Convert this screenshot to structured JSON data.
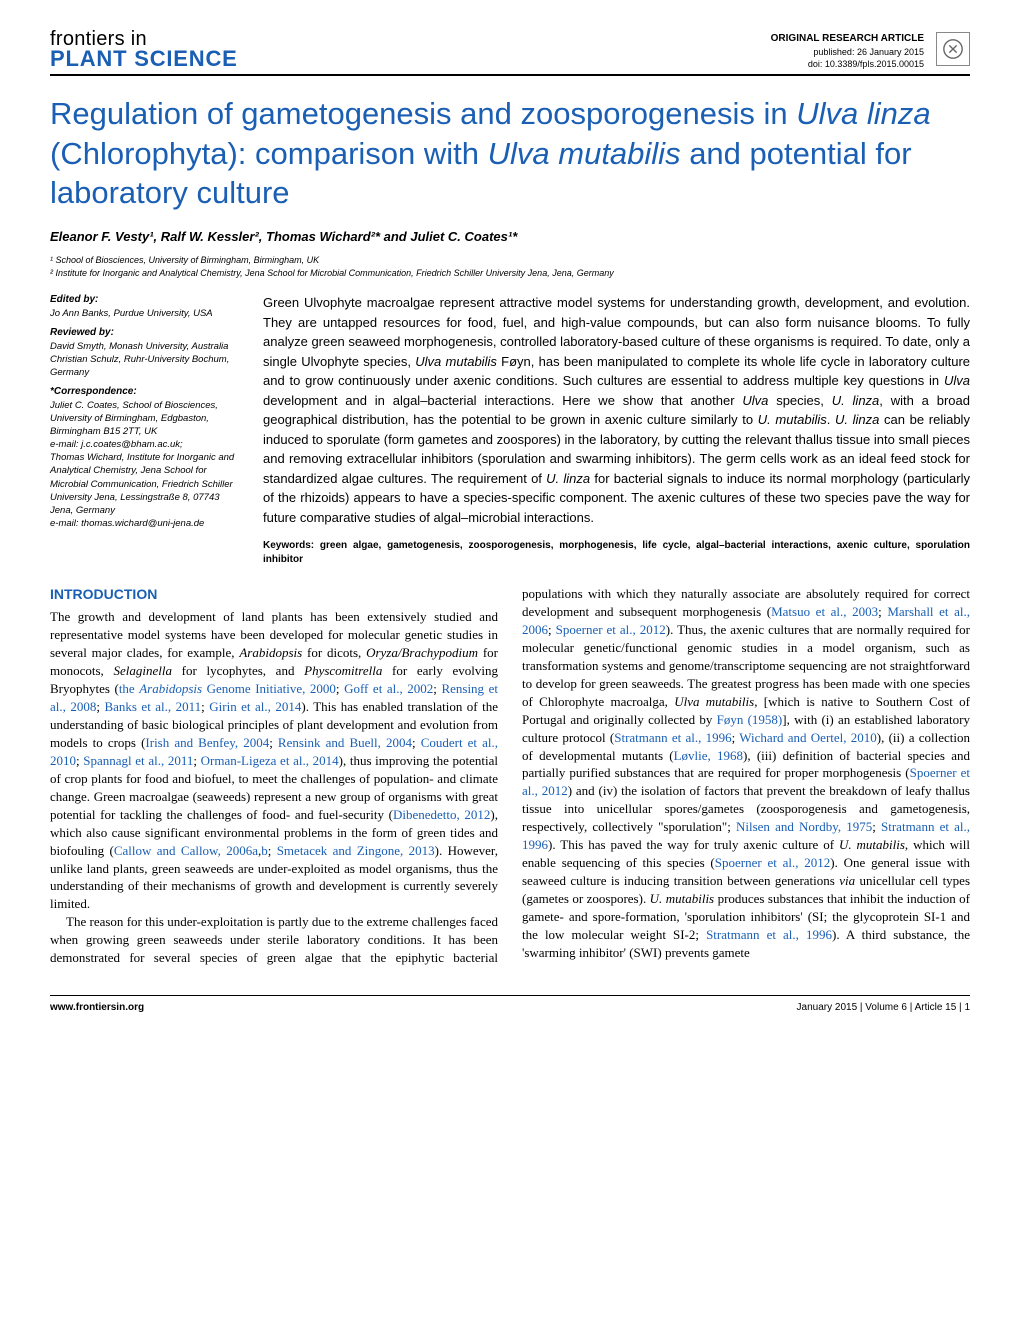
{
  "colors": {
    "brand": "#1a5fb4",
    "text": "#000000",
    "bg": "#ffffff"
  },
  "header": {
    "journal_line1": "frontiers in",
    "journal_line2": "PLANT SCIENCE",
    "article_type": "ORIGINAL RESEARCH ARTICLE",
    "published": "published: 26 January 2015",
    "doi": "doi: 10.3389/fpls.2015.00015"
  },
  "title_parts": {
    "p1": "Regulation of gametogenesis and zoosporogenesis in ",
    "sp1": "Ulva linza",
    "p2": " (Chlorophyta): comparison with ",
    "sp2": "Ulva mutabilis",
    "p3": " and potential for laboratory culture"
  },
  "authors_line": "Eleanor F. Vesty¹, Ralf W. Kessler², Thomas Wichard²* and Juliet C. Coates¹*",
  "affiliations": {
    "a1": "¹ School of Biosciences, University of Birmingham, Birmingham, UK",
    "a2": "² Institute for Inorganic and Analytical Chemistry, Jena School for Microbial Communication, Friedrich Schiller University Jena, Jena, Germany"
  },
  "sidebar": {
    "edited_h": "Edited by:",
    "edited": "Jo Ann Banks, Purdue University, USA",
    "reviewed_h": "Reviewed by:",
    "reviewed1": "David Smyth, Monash University, Australia",
    "reviewed2": "Christian Schulz, Ruhr-University Bochum, Germany",
    "corr_h": "*Correspondence:",
    "corr1": "Juliet C. Coates, School of Biosciences, University of Birmingham, Edgbaston, Birmingham B15 2TT, UK",
    "corr1_email": "e-mail: j.c.coates@bham.ac.uk;",
    "corr2": "Thomas Wichard, Institute for Inorganic and Analytical Chemistry, Jena School for Microbial Communication, Friedrich Schiller University Jena, Lessingstraße 8, 07743 Jena, Germany",
    "corr2_email": "e-mail: thomas.wichard@uni-jena.de"
  },
  "abstract_html": "Green Ulvophyte macroalgae represent attractive model systems for understanding growth, development, and evolution. They are untapped resources for food, fuel, and high-value compounds, but can also form nuisance blooms. To fully analyze green seaweed morphogenesis, controlled laboratory-based culture of these organisms is required. To date, only a single Ulvophyte species, <span class=\"ital\">Ulva mutabilis</span> Føyn, has been manipulated to complete its whole life cycle in laboratory culture and to grow continuously under axenic conditions. Such cultures are essential to address multiple key questions in <span class=\"ital\">Ulva</span> development and in algal–bacterial interactions. Here we show that another <span class=\"ital\">Ulva</span> species, <span class=\"ital\">U. linza</span>, with a broad geographical distribution, has the potential to be grown in axenic culture similarly to <span class=\"ital\">U. mutabilis</span>. <span class=\"ital\">U. linza</span> can be reliably induced to sporulate (form gametes and zoospores) in the laboratory, by cutting the relevant thallus tissue into small pieces and removing extracellular inhibitors (sporulation and swarming inhibitors). The germ cells work as an ideal feed stock for standardized algae cultures. The requirement of <span class=\"ital\">U. linza</span> for bacterial signals to induce its normal morphology (particularly of the rhizoids) appears to have a species-specific component. The axenic cultures of these two species pave the way for future comparative studies of algal–microbial interactions.",
  "keywords": "Keywords: green algae, gametogenesis, zoosporogenesis, morphogenesis, life cycle, algal–bacterial interactions, axenic culture, sporulation inhibitor",
  "intro_heading": "INTRODUCTION",
  "intro_p1_html": "The growth and development of land plants has been extensively studied and representative model systems have been developed for molecular genetic studies in several major clades, for example, <span class=\"ital\">Arabidopsis</span> for dicots, <span class=\"ital\">Oryza/Brachypodium</span> for monocots, <span class=\"ital\">Selaginella</span> for lycophytes, and <span class=\"ital\">Physcomitrella</span> for early evolving Bryophytes (<span class=\"ref\">the <span class=\"ital\">Arabidopsis</span> Genome Initiative, 2000</span>; <span class=\"ref\">Goff et al., 2002</span>; <span class=\"ref\">Rensing et al., 2008</span>; <span class=\"ref\">Banks et al., 2011</span>; <span class=\"ref\">Girin et al., 2014</span>). This has enabled translation of the understanding of basic biological principles of plant development and evolution from models to crops (<span class=\"ref\">Irish and Benfey, 2004</span>; <span class=\"ref\">Rensink and Buell, 2004</span>; <span class=\"ref\">Coudert et al., 2010</span>; <span class=\"ref\">Spannagl et al., 2011</span>; <span class=\"ref\">Orman-Ligeza et al., 2014</span>), thus improving the potential of crop plants for food and biofuel, to meet the challenges of population- and climate change. Green macroalgae (seaweeds) represent a new group of organisms with great potential for tackling the challenges of food- and fuel-security (<span class=\"ref\">Dibenedetto, 2012</span>), which also cause significant environmental problems in the form of green tides and biofouling (<span class=\"ref\">Callow and Callow, 2006a</span>,<span class=\"ref\">b</span>; <span class=\"ref\">Smetacek and Zingone, 2013</span>). However, unlike land plants, green seaweeds are under-exploited as model organisms, thus the understanding of their mechanisms of growth and development is currently severely limited.",
  "intro_p2_html": "The reason for this under-exploitation is partly due to the extreme challenges faced when growing green seaweeds under sterile laboratory conditions. It has been demonstrated for several species of green algae that the epiphytic bacterial populations with which they naturally associate are absolutely required for correct development and subsequent morphogenesis (<span class=\"ref\">Matsuo et al., 2003</span>; <span class=\"ref\">Marshall et al., 2006</span>; <span class=\"ref\">Spoerner et al., 2012</span>). Thus, the axenic cultures that are normally required for molecular genetic/functional genomic studies in a model organism, such as transformation systems and genome/transcriptome sequencing are not straightforward to develop for green seaweeds. The greatest progress has been made with one species of Chlorophyte macroalga, <span class=\"ital\">Ulva mutabilis</span>, [which is native to Southern Cost of Portugal and originally collected by <span class=\"ref\">Føyn (1958)</span>], with (i) an established laboratory culture protocol (<span class=\"ref\">Stratmann et al., 1996</span>; <span class=\"ref\">Wichard and Oertel, 2010</span>), (ii) a collection of developmental mutants (<span class=\"ref\">Løvlie, 1968</span>), (iii) definition of bacterial species and partially purified substances that are required for proper morphogenesis (<span class=\"ref\">Spoerner et al., 2012</span>) and (iv) the isolation of factors that prevent the breakdown of leafy thallus tissue into unicellular spores/gametes (zoosporogenesis and gametogenesis, respectively, collectively \"sporulation\"; <span class=\"ref\">Nilsen and Nordby, 1975</span>; <span class=\"ref\">Stratmann et al., 1996</span>). This has paved the way for truly axenic culture of <span class=\"ital\">U. mutabilis</span>, which will enable sequencing of this species (<span class=\"ref\">Spoerner et al., 2012</span>). One general issue with seaweed culture is inducing transition between generations <span class=\"ital\">via</span> unicellular cell types (gametes or zoospores). <span class=\"ital\">U. mutabilis</span> produces substances that inhibit the induction of gamete- and spore-formation, 'sporulation inhibitors' (SI; the glycoprotein SI-1 and the low molecular weight SI-2; <span class=\"ref\">Stratmann et al., 1996</span>). A third substance, the 'swarming inhibitor' (SWI) prevents gamete",
  "footer": {
    "left": "www.frontiersin.org",
    "right": "January 2015 | Volume 6 | Article 15 | 1"
  }
}
